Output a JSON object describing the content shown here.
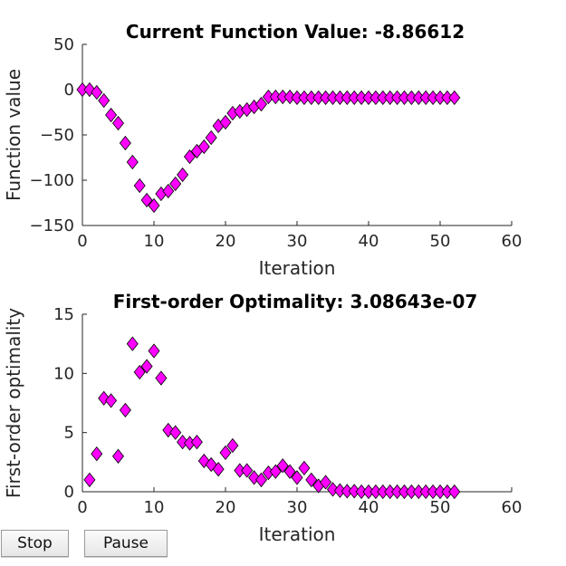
{
  "controls": {
    "stop_label": "Stop",
    "pause_label": "Pause"
  },
  "colors": {
    "marker_fill": "#ff00ff",
    "marker_edge": "#000000",
    "axis": "#262626",
    "background": "#ffffff"
  },
  "chart_data": [
    {
      "type": "scatter",
      "title": "Current Function Value: -8.86612",
      "xlabel": "Iteration",
      "ylabel": "Function value",
      "xlim": [
        0,
        60
      ],
      "ylim": [
        -150,
        50
      ],
      "xticks": [
        0,
        10,
        20,
        30,
        40,
        50,
        60
      ],
      "yticks": [
        -150,
        -100,
        -50,
        0,
        50
      ],
      "grid": false,
      "marker": "diamond",
      "series": [
        {
          "x": [
            0,
            1,
            2,
            3,
            4,
            5,
            6,
            7,
            8,
            9,
            10,
            11,
            12,
            13,
            14,
            15,
            16,
            17,
            18,
            19,
            20,
            21,
            22,
            23,
            24,
            25,
            26,
            27,
            28,
            29,
            30,
            31,
            32,
            33,
            34,
            35,
            36,
            37,
            38,
            39,
            40,
            41,
            42,
            43,
            44,
            45,
            46,
            47,
            48,
            49,
            50,
            51,
            52
          ],
          "values": [
            0,
            0,
            -3,
            -12,
            -28,
            -37,
            -59,
            -80,
            -106,
            -122,
            -128,
            -115,
            -112,
            -104,
            -94,
            -74,
            -68,
            -63,
            -53,
            -40,
            -36,
            -26,
            -24,
            -22,
            -19,
            -16,
            -8,
            -8,
            -8,
            -8,
            -8.9,
            -8.9,
            -8.9,
            -8.9,
            -8.9,
            -8.9,
            -8.9,
            -8.9,
            -8.9,
            -8.9,
            -8.9,
            -8.9,
            -8.9,
            -8.9,
            -8.9,
            -8.9,
            -8.9,
            -8.9,
            -8.9,
            -8.9,
            -8.9,
            -8.9,
            -8.9
          ]
        }
      ]
    },
    {
      "type": "scatter",
      "title": "First-order Optimality: 3.08643e-07",
      "xlabel": "Iteration",
      "ylabel": "First-order optimality",
      "xlim": [
        0,
        60
      ],
      "ylim": [
        0,
        15
      ],
      "xticks": [
        0,
        10,
        20,
        30,
        40,
        50,
        60
      ],
      "yticks": [
        0,
        5,
        10,
        15
      ],
      "grid": false,
      "marker": "diamond",
      "series": [
        {
          "x": [
            1,
            2,
            3,
            4,
            5,
            6,
            7,
            8,
            9,
            10,
            11,
            12,
            13,
            14,
            15,
            16,
            17,
            18,
            19,
            20,
            21,
            22,
            23,
            24,
            25,
            26,
            27,
            28,
            29,
            30,
            31,
            32,
            33,
            34,
            35,
            36,
            37,
            38,
            39,
            40,
            41,
            42,
            43,
            44,
            45,
            46,
            47,
            48,
            49,
            50,
            51,
            52
          ],
          "values": [
            1.0,
            3.2,
            7.9,
            7.7,
            3.0,
            6.9,
            12.5,
            10.1,
            10.6,
            11.9,
            9.6,
            5.2,
            5.0,
            4.2,
            4.1,
            4.2,
            2.6,
            2.3,
            1.9,
            3.3,
            3.9,
            1.8,
            1.8,
            1.2,
            1.0,
            1.6,
            1.7,
            2.2,
            1.7,
            1.2,
            2.0,
            1.0,
            0.5,
            0.8,
            0.2,
            0.1,
            0.05,
            0.05,
            0,
            0,
            0,
            0,
            0,
            0,
            0,
            0,
            0,
            0,
            0,
            0,
            0,
            0
          ]
        }
      ]
    }
  ]
}
